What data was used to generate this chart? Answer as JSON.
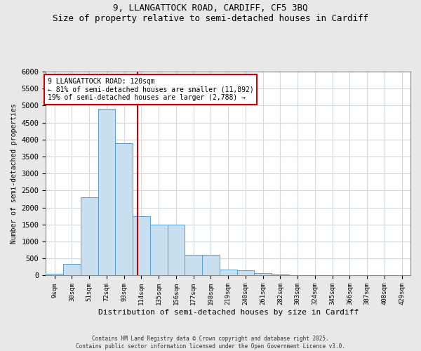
{
  "title_line1": "9, LLANGATTOCK ROAD, CARDIFF, CF5 3BQ",
  "title_line2": "Size of property relative to semi-detached houses in Cardiff",
  "xlabel": "Distribution of semi-detached houses by size in Cardiff",
  "ylabel": "Number of semi-detached properties",
  "bin_labels": [
    "9sqm",
    "30sqm",
    "51sqm",
    "72sqm",
    "93sqm",
    "114sqm",
    "135sqm",
    "156sqm",
    "177sqm",
    "198sqm",
    "219sqm",
    "240sqm",
    "261sqm",
    "282sqm",
    "303sqm",
    "324sqm",
    "345sqm",
    "366sqm",
    "387sqm",
    "408sqm",
    "429sqm"
  ],
  "bin_left_edges": [
    9,
    30,
    51,
    72,
    93,
    114,
    135,
    156,
    177,
    198,
    219,
    240,
    261,
    282,
    303,
    324,
    345,
    366,
    387,
    408
  ],
  "bar_heights": [
    50,
    350,
    2300,
    4900,
    3900,
    1750,
    1500,
    1500,
    600,
    600,
    175,
    150,
    75,
    40,
    20,
    10,
    5,
    3,
    2,
    2
  ],
  "bar_color": "#c8dff0",
  "bar_edgecolor": "#5b9bd5",
  "vline_x": 120,
  "vline_color": "#cc0000",
  "ylim": [
    0,
    6000
  ],
  "yticks": [
    0,
    500,
    1000,
    1500,
    2000,
    2500,
    3000,
    3500,
    4000,
    4500,
    5000,
    5500,
    6000
  ],
  "annotation_title": "9 LLANGATTOCK ROAD: 120sqm",
  "annotation_line2": "← 81% of semi-detached houses are smaller (11,892)",
  "annotation_line3": "19% of semi-detached houses are larger (2,788) →",
  "annotation_box_color": "#cc0000",
  "footnote1": "Contains HM Land Registry data © Crown copyright and database right 2025.",
  "footnote2": "Contains public sector information licensed under the Open Government Licence v3.0.",
  "plot_bg_color": "#ffffff",
  "fig_bg_color": "#e8e8e8",
  "grid_color": "#d0d8e0"
}
